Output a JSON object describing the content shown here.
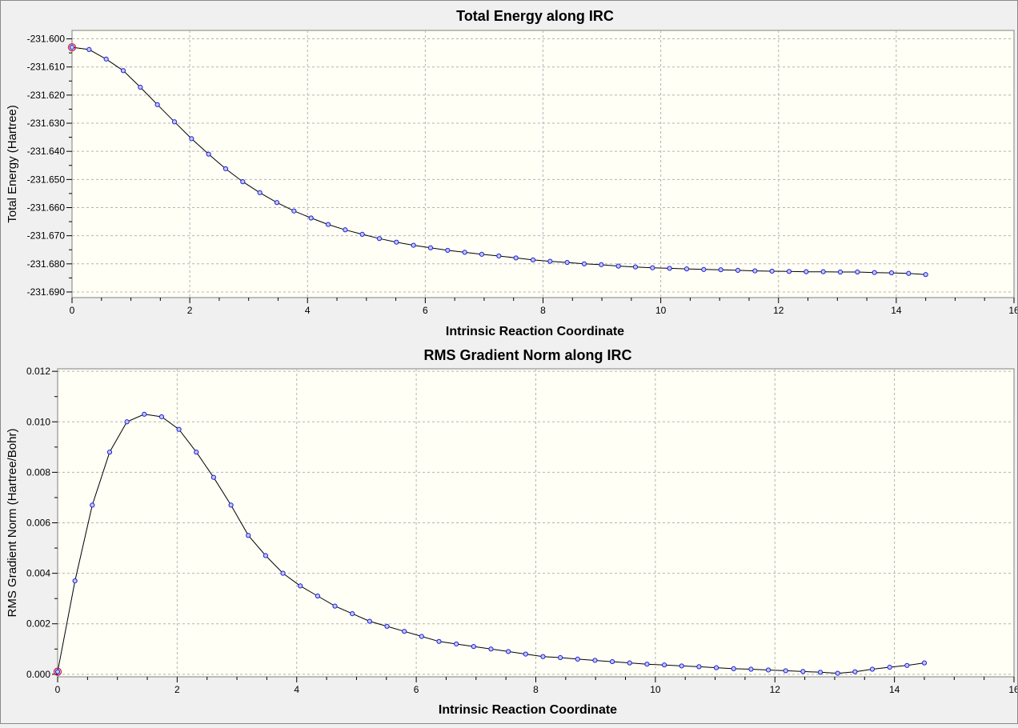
{
  "colors": {
    "background": "#f0f0f0",
    "plot_area": "#fffff6",
    "grid": "#b4b4b4",
    "line": "#000000",
    "marker_stroke": "#2020d0",
    "marker_fill": "#bfc8ff",
    "highlight_marker": "#d02040"
  },
  "chart_data": [
    {
      "type": "line",
      "title": "Total Energy along IRC",
      "xlabel": "Intrinsic Reaction Coordinate",
      "ylabel": "Total Energy (Hartree)",
      "xlim": [
        0,
        16
      ],
      "ylim": [
        -231.692,
        -231.597
      ],
      "x_ticks": [
        0,
        2,
        4,
        6,
        8,
        10,
        12,
        14,
        16
      ],
      "x_tick_labels": [
        "0",
        "2",
        "4",
        "6",
        "8",
        "10",
        "12",
        "14",
        "16"
      ],
      "y_ticks": [
        -231.6,
        -231.61,
        -231.62,
        -231.63,
        -231.64,
        -231.65,
        -231.66,
        -231.67,
        -231.68,
        -231.69
      ],
      "y_tick_labels": [
        "-231.600",
        "-231.610",
        "-231.620",
        "-231.630",
        "-231.640",
        "-231.650",
        "-231.660",
        "-231.670",
        "-231.680",
        "-231.690"
      ],
      "grid": true,
      "highlight_index": 0,
      "series": [
        {
          "x": [
            0,
            0.29,
            0.58,
            0.87,
            1.16,
            1.45,
            1.74,
            2.03,
            2.32,
            2.61,
            2.9,
            3.19,
            3.48,
            3.77,
            4.06,
            4.35,
            4.64,
            4.93,
            5.22,
            5.51,
            5.8,
            6.09,
            6.38,
            6.67,
            6.96,
            7.25,
            7.54,
            7.83,
            8.12,
            8.41,
            8.7,
            8.99,
            9.28,
            9.57,
            9.86,
            10.15,
            10.44,
            10.73,
            11.02,
            11.31,
            11.6,
            11.89,
            12.18,
            12.47,
            12.76,
            13.05,
            13.34,
            13.63,
            13.92,
            14.21,
            14.5
          ],
          "y": [
            -231.603,
            -231.6038,
            -231.6072,
            -231.6113,
            -231.6172,
            -231.6234,
            -231.6295,
            -231.6355,
            -231.641,
            -231.6462,
            -231.6508,
            -231.6547,
            -231.6582,
            -231.6612,
            -231.6637,
            -231.666,
            -231.6679,
            -231.6695,
            -231.671,
            -231.6723,
            -231.6734,
            -231.6743,
            -231.6752,
            -231.6759,
            -231.6766,
            -231.6772,
            -231.6779,
            -231.6786,
            -231.6791,
            -231.6795,
            -231.68,
            -231.6803,
            -231.6808,
            -231.6811,
            -231.6814,
            -231.6816,
            -231.6818,
            -231.682,
            -231.6821,
            -231.6823,
            -231.6825,
            -231.6826,
            -231.6827,
            -231.6828,
            -231.6828,
            -231.6829,
            -231.6829,
            -231.6831,
            -231.6832,
            -231.6834,
            -231.6838
          ]
        }
      ]
    },
    {
      "type": "line",
      "title": "RMS Gradient Norm along IRC",
      "xlabel": "Intrinsic Reaction Coordinate",
      "ylabel": "RMS Gradient Norm (Hartree/Bohr)",
      "xlim": [
        0,
        16
      ],
      "ylim": [
        -0.0001,
        0.0121
      ],
      "x_ticks": [
        0,
        2,
        4,
        6,
        8,
        10,
        12,
        14,
        16
      ],
      "x_tick_labels": [
        "0",
        "2",
        "4",
        "6",
        "8",
        "10",
        "12",
        "14",
        "16"
      ],
      "y_ticks": [
        0,
        0.002,
        0.004,
        0.006,
        0.008,
        0.01,
        0.012
      ],
      "y_tick_labels": [
        "0.000",
        "0.002",
        "0.004",
        "0.006",
        "0.008",
        "0.010",
        "0.012"
      ],
      "grid": true,
      "highlight_index": 0,
      "series": [
        {
          "x": [
            0,
            0.29,
            0.58,
            0.87,
            1.16,
            1.45,
            1.74,
            2.03,
            2.32,
            2.61,
            2.9,
            3.19,
            3.48,
            3.77,
            4.06,
            4.35,
            4.64,
            4.93,
            5.22,
            5.51,
            5.8,
            6.09,
            6.38,
            6.67,
            6.96,
            7.25,
            7.54,
            7.83,
            8.12,
            8.41,
            8.7,
            8.99,
            9.28,
            9.57,
            9.86,
            10.15,
            10.44,
            10.73,
            11.02,
            11.31,
            11.6,
            11.89,
            12.18,
            12.47,
            12.76,
            13.05,
            13.34,
            13.63,
            13.92,
            14.21,
            14.5
          ],
          "y": [
            0.0001,
            0.0037,
            0.0067,
            0.0088,
            0.01,
            0.0103,
            0.0102,
            0.0097,
            0.0088,
            0.0078,
            0.0067,
            0.0055,
            0.0047,
            0.004,
            0.0035,
            0.0031,
            0.0027,
            0.0024,
            0.0021,
            0.0019,
            0.0017,
            0.0015,
            0.0013,
            0.0012,
            0.0011,
            0.001,
            0.0009,
            0.0008,
            0.0007,
            0.00066,
            0.0006,
            0.00055,
            0.0005,
            0.00045,
            0.0004,
            0.00037,
            0.00033,
            0.0003,
            0.00026,
            0.00022,
            0.0002,
            0.00017,
            0.00014,
            0.00011,
            8e-05,
            4e-05,
            0.0001,
            0.0002,
            0.00028,
            0.00035,
            0.00045
          ]
        }
      ]
    }
  ]
}
